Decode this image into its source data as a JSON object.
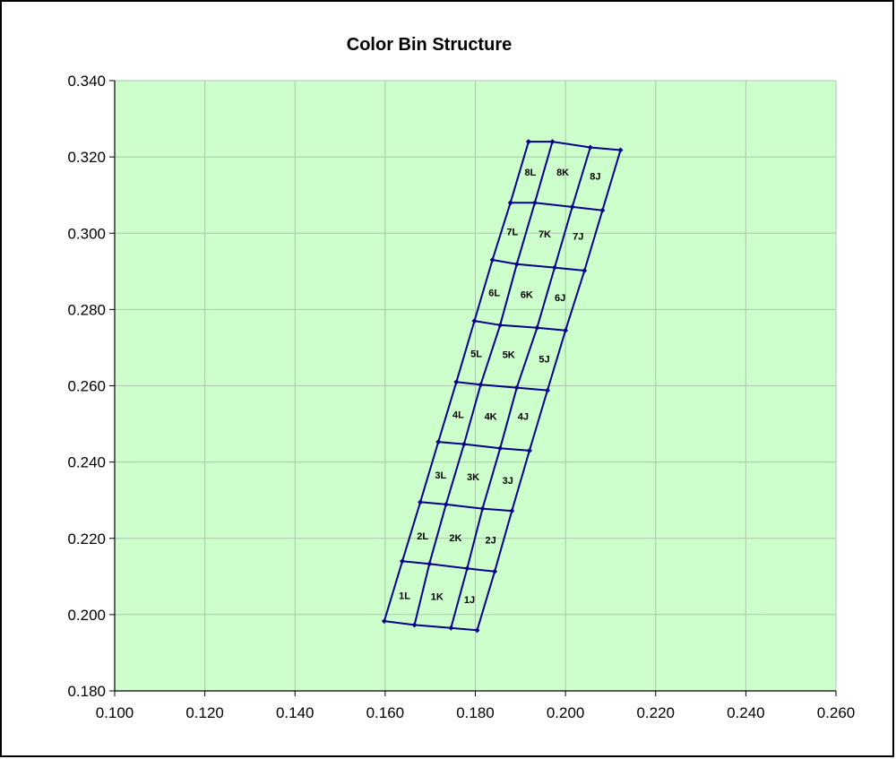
{
  "chart_data": {
    "type": "line",
    "title": "Color Bin Structure",
    "xlabel": "",
    "ylabel": "",
    "xlim": [
      0.1,
      0.26
    ],
    "ylim": [
      0.18,
      0.34
    ],
    "x_ticks": [
      "0.100",
      "0.120",
      "0.140",
      "0.160",
      "0.180",
      "0.200",
      "0.220",
      "0.240",
      "0.260"
    ],
    "y_ticks": [
      "0.340",
      "0.320",
      "0.300",
      "0.280",
      "0.260",
      "0.240",
      "0.220",
      "0.200",
      "0.180"
    ],
    "x_tick_values": [
      0.1,
      0.12,
      0.14,
      0.16,
      0.18,
      0.2,
      0.22,
      0.24,
      0.26
    ],
    "y_tick_values": [
      0.34,
      0.32,
      0.3,
      0.28,
      0.26,
      0.24,
      0.22,
      0.2,
      0.18
    ],
    "grid": true,
    "colors": {
      "plot_background": "#ccffcc",
      "grid": "#a8c8a8",
      "line": "#00008b"
    },
    "grid_rows": [
      [
        [
          0.1598,
          0.1983
        ],
        [
          0.1665,
          0.1973
        ],
        [
          0.1746,
          0.1965
        ],
        [
          0.1804,
          0.1959
        ]
      ],
      [
        [
          0.1638,
          0.214
        ],
        [
          0.1698,
          0.2133
        ],
        [
          0.1782,
          0.2121
        ],
        [
          0.1843,
          0.2113
        ]
      ],
      [
        [
          0.1678,
          0.2295
        ],
        [
          0.1735,
          0.2289
        ],
        [
          0.1816,
          0.2278
        ],
        [
          0.1881,
          0.2272
        ]
      ],
      [
        [
          0.1718,
          0.2453
        ],
        [
          0.1775,
          0.2447
        ],
        [
          0.1855,
          0.2436
        ],
        [
          0.192,
          0.243
        ]
      ],
      [
        [
          0.1758,
          0.261
        ],
        [
          0.1812,
          0.2603
        ],
        [
          0.1892,
          0.2595
        ],
        [
          0.196,
          0.2588
        ]
      ],
      [
        [
          0.1798,
          0.277
        ],
        [
          0.1855,
          0.2759
        ],
        [
          0.1937,
          0.2752
        ],
        [
          0.2,
          0.2745
        ]
      ],
      [
        [
          0.1838,
          0.293
        ],
        [
          0.1892,
          0.2919
        ],
        [
          0.1976,
          0.291
        ],
        [
          0.2042,
          0.2902
        ]
      ],
      [
        [
          0.1878,
          0.308
        ],
        [
          0.1932,
          0.308
        ],
        [
          0.2015,
          0.3069
        ],
        [
          0.2082,
          0.306
        ]
      ],
      [
        [
          0.1918,
          0.324
        ],
        [
          0.1971,
          0.324
        ],
        [
          0.2055,
          0.3225
        ],
        [
          0.2122,
          0.3218
        ]
      ]
    ],
    "bins": [
      {
        "label": "1L",
        "x": 0.1643,
        "y": 0.205
      },
      {
        "label": "1K",
        "x": 0.1715,
        "y": 0.2048
      },
      {
        "label": "1J",
        "x": 0.1787,
        "y": 0.204
      },
      {
        "label": "2L",
        "x": 0.1683,
        "y": 0.2207
      },
      {
        "label": "2K",
        "x": 0.1756,
        "y": 0.2202
      },
      {
        "label": "2J",
        "x": 0.1834,
        "y": 0.2196
      },
      {
        "label": "3L",
        "x": 0.1723,
        "y": 0.2366
      },
      {
        "label": "3K",
        "x": 0.1795,
        "y": 0.2362
      },
      {
        "label": "3J",
        "x": 0.1872,
        "y": 0.2352
      },
      {
        "label": "4L",
        "x": 0.1762,
        "y": 0.2525
      },
      {
        "label": "4K",
        "x": 0.1834,
        "y": 0.252
      },
      {
        "label": "4J",
        "x": 0.1906,
        "y": 0.252
      },
      {
        "label": "5L",
        "x": 0.1802,
        "y": 0.2685
      },
      {
        "label": "5K",
        "x": 0.1874,
        "y": 0.2682
      },
      {
        "label": "5J",
        "x": 0.1953,
        "y": 0.2671
      },
      {
        "label": "6L",
        "x": 0.1842,
        "y": 0.2844
      },
      {
        "label": "6K",
        "x": 0.1914,
        "y": 0.284
      },
      {
        "label": "6J",
        "x": 0.1988,
        "y": 0.2831
      },
      {
        "label": "7L",
        "x": 0.1882,
        "y": 0.3004
      },
      {
        "label": "7K",
        "x": 0.1954,
        "y": 0.2998
      },
      {
        "label": "7J",
        "x": 0.2028,
        "y": 0.2992
      },
      {
        "label": "8L",
        "x": 0.1922,
        "y": 0.316
      },
      {
        "label": "8K",
        "x": 0.1994,
        "y": 0.316
      },
      {
        "label": "8J",
        "x": 0.2066,
        "y": 0.315
      }
    ]
  }
}
